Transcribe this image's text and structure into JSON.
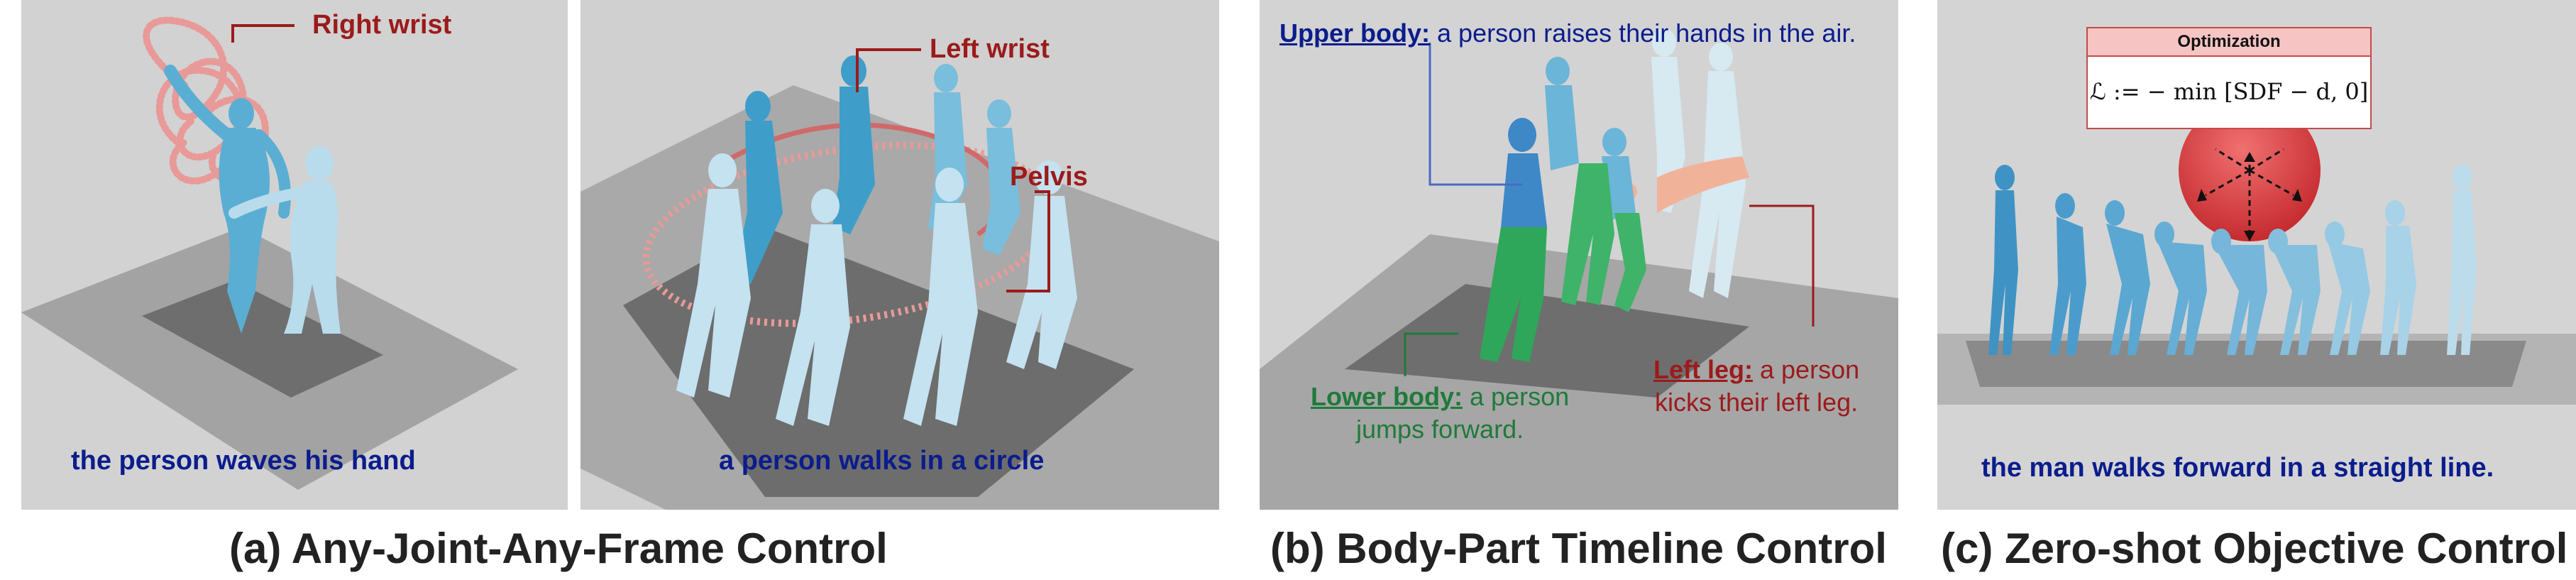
{
  "panel_a": {
    "label_right_wrist": "Right wrist",
    "label_left_wrist": "Left wrist",
    "label_pelvis": "Pelvis",
    "prompt_left": "the person waves his hand",
    "prompt_right": "a person walks in a circle",
    "caption": "(a) Any-Joint-Any-Frame Control"
  },
  "panel_b": {
    "upper_tag": "Upper body:",
    "upper_text": "a person raises their hands in the air.",
    "lower_tag": "Lower body:",
    "lower_text_1": "a person",
    "lower_text_2": "jumps forward.",
    "leftleg_tag": "Left leg:",
    "leftleg_text_1": "a person",
    "leftleg_text_2": "kicks their left leg.",
    "caption": "(b) Body-Part Timeline Control"
  },
  "panel_c": {
    "opt_title": "Optimization",
    "opt_formula": "ℒ := − min [SDF − d, 0]",
    "prompt": "the man walks forward in a straight line.",
    "caption": "(c) Zero-shot Objective Control"
  },
  "colors": {
    "dark_red": "#9b1b1b",
    "navy": "#0b1d8c",
    "green": "#1f7a3a",
    "figure_blue": "#5aaed3",
    "figure_light": "#b8dcec",
    "trajectory_pink": "#e89a98",
    "sphere_red": "#d8383c"
  }
}
